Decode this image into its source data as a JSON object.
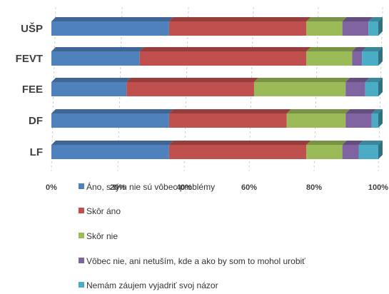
{
  "chart_data": {
    "type": "bar",
    "orientation": "horizontal",
    "stacked": "percent",
    "categories": [
      "UŠP",
      "FEVT",
      "FEE",
      "DF",
      "LF"
    ],
    "series": [
      {
        "name": "Áno, s tým nie sú vôbec problémy",
        "color": "#4F81BD",
        "values": [
          36,
          27,
          23,
          36,
          36
        ]
      },
      {
        "name": "Skôr áno",
        "color": "#C0504D",
        "values": [
          42,
          51,
          39,
          36,
          42
        ]
      },
      {
        "name": "Skôr nie",
        "color": "#9BBB59",
        "values": [
          11,
          14,
          28,
          18,
          11
        ]
      },
      {
        "name": "Vôbec nie, ani netuším, kde a ako by som to mohol urobiť",
        "color": "#8064A2",
        "values": [
          8,
          3,
          6,
          8,
          5
        ]
      },
      {
        "name": "Nemám záujem vyjadriť svoj názor",
        "color": "#4BACC6",
        "values": [
          3,
          5,
          4,
          2,
          6
        ]
      }
    ],
    "x_ticks": [
      "0%",
      "20%",
      "40%",
      "60%",
      "80%",
      "100%"
    ],
    "xlim": [
      0,
      100
    ],
    "grid": true,
    "legend_position": "bottom"
  }
}
